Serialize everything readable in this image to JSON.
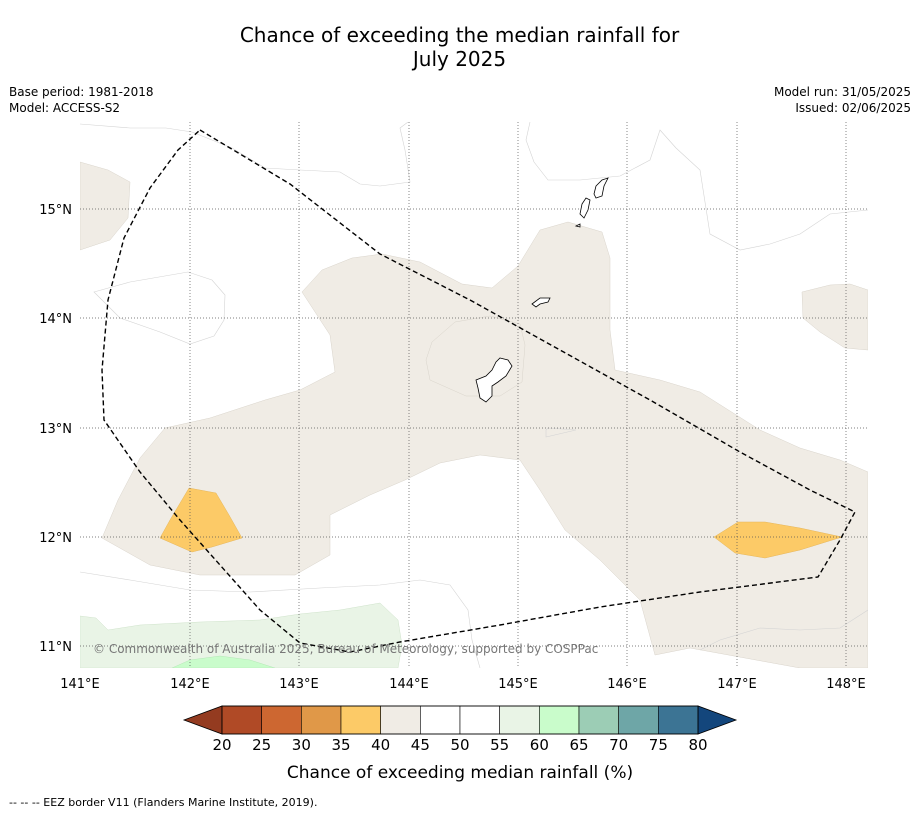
{
  "title": {
    "line1": "Chance of exceeding the median rainfall for",
    "line2": "July 2025"
  },
  "meta": {
    "base_period": "Base period: 1981-2018",
    "model": "Model: ACCESS-S2",
    "model_run": "Model run: 31/05/2025",
    "issued": "Issued: 02/06/2025"
  },
  "map": {
    "lon_ticks": [
      "141°E",
      "142°E",
      "143°E",
      "144°E",
      "145°E",
      "146°E",
      "147°E",
      "148°E"
    ],
    "lat_ticks": [
      "15°N",
      "14°N",
      "13°N",
      "12°N",
      "11°N"
    ],
    "copyright": "© Commonwealth of Australia 2025, Bureau of Meteorology, supported by COSPPac",
    "extent": {
      "lon": [
        141.0,
        148.2
      ],
      "lat": [
        10.8,
        15.8
      ]
    }
  },
  "colorbar": {
    "ticks": [
      "20",
      "25",
      "30",
      "35",
      "40",
      "45",
      "50",
      "55",
      "60",
      "65",
      "70",
      "75",
      "80"
    ],
    "colors": [
      "#b04a26",
      "#cd6731",
      "#e09848",
      "#fcca67",
      "#f0ece5",
      "#ffffff",
      "#ffffff",
      "#e9f4e6",
      "#c9fccb",
      "#9ccdb5",
      "#6ea6a7",
      "#3c7494"
    ],
    "under_color": "#943b20",
    "over_color": "#13467c",
    "label": "Chance of exceeding median rainfall (%)"
  },
  "footer": {
    "legend": "--  --  -- EEZ border V11 (Flanders Marine Institute, 2019)."
  }
}
